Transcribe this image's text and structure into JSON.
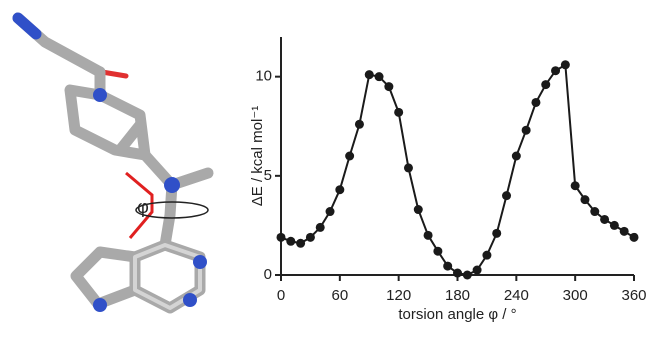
{
  "molecule_label": "φ",
  "chart_data": {
    "type": "line",
    "xlabel": "torsion angle φ / °",
    "ylabel": "ΔE / kcal mol⁻¹",
    "x": [
      0,
      10,
      20,
      30,
      40,
      50,
      60,
      70,
      80,
      90,
      100,
      110,
      120,
      130,
      140,
      150,
      160,
      170,
      180,
      190,
      200,
      210,
      220,
      230,
      240,
      250,
      260,
      270,
      280,
      290,
      300,
      310,
      320,
      330,
      340,
      350,
      360
    ],
    "values": [
      1.9,
      1.7,
      1.6,
      1.9,
      2.4,
      3.2,
      4.3,
      6.0,
      7.6,
      10.1,
      10.0,
      9.5,
      8.2,
      5.4,
      3.3,
      2.0,
      1.2,
      0.45,
      0.1,
      0.0,
      0.25,
      1.0,
      2.1,
      4.0,
      6.0,
      7.3,
      8.7,
      9.6,
      10.3,
      10.6,
      4.5,
      3.8,
      3.2,
      2.8,
      2.5,
      2.2,
      1.9
    ],
    "color": "#1a1a1a",
    "xlim": [
      0,
      360
    ],
    "xticks": [
      0,
      60,
      120,
      180,
      240,
      300,
      360
    ],
    "ylim": [
      0,
      12
    ],
    "yticks": [
      0,
      5,
      10
    ]
  }
}
